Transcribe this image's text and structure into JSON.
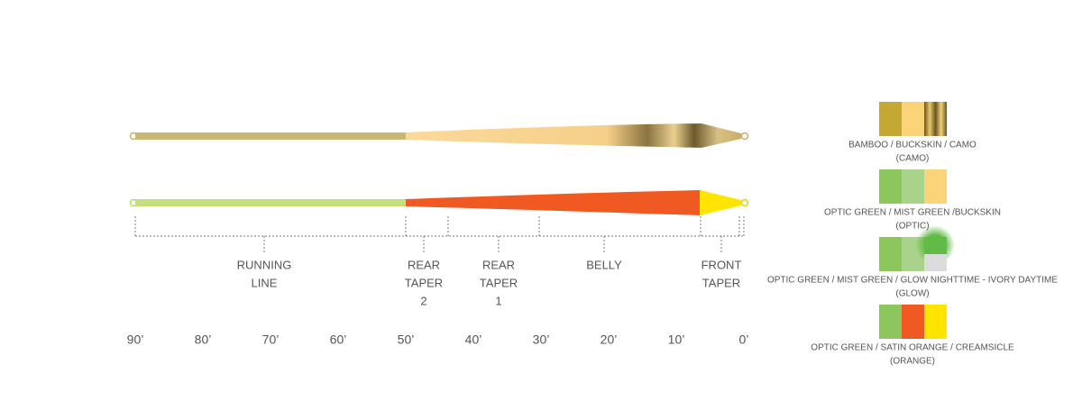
{
  "axis": {
    "labels": [
      "90’",
      "80’",
      "70’",
      "60’",
      "50’",
      "40’",
      "30’",
      "20’",
      "10’",
      "0’"
    ]
  },
  "sections": [
    {
      "lines": [
        "RUNNING",
        "LINE"
      ]
    },
    {
      "lines": [
        "REAR",
        "TAPER",
        "2"
      ]
    },
    {
      "lines": [
        "REAR",
        "TAPER",
        "1"
      ]
    },
    {
      "lines": [
        "BELLY"
      ]
    },
    {
      "lines": [
        "FRONT",
        "TAPER"
      ]
    }
  ],
  "swatches": [
    {
      "name": "BAMBOO / BUCKSKIN / CAMO",
      "code": "(CAMO)"
    },
    {
      "name": "OPTIC GREEN / MIST GREEN /BUCKSKIN",
      "code": "(OPTIC)"
    },
    {
      "name": "OPTIC GREEN / MIST GREEN / GLOW NIGHTTIME - IVORY DAYTIME",
      "code": "(GLOW)"
    },
    {
      "name": "OPTIC GREEN / SATIN ORANGE / CREAMSICLE",
      "code": "(ORANGE)"
    }
  ]
}
